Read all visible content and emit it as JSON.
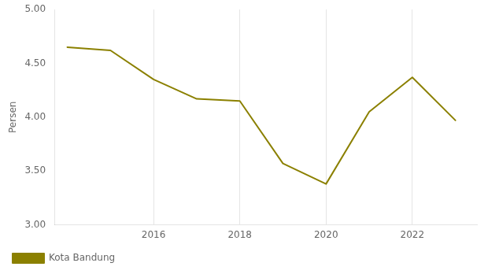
{
  "chart_data": {
    "type": "line",
    "x": [
      2014,
      2015,
      2016,
      2017,
      2018,
      2019,
      2020,
      2021,
      2022,
      2023
    ],
    "series": [
      {
        "name": "Kota Bandung",
        "color": "#8B8000",
        "values": [
          4.65,
          4.62,
          4.35,
          4.17,
          4.15,
          3.57,
          3.38,
          4.05,
          4.37,
          3.97
        ]
      }
    ],
    "y_label": "Persen",
    "xlim": [
      2013.7,
      2023.5
    ],
    "xticks": [
      2016,
      2018,
      2020,
      2022
    ],
    "ylim": [
      3.0,
      5.0
    ],
    "yticks": [
      {
        "value": 3.0,
        "label": "3.00"
      },
      {
        "value": 3.5,
        "label": "3.50"
      },
      {
        "value": 4.0,
        "label": "4.00"
      },
      {
        "value": 4.5,
        "label": "4.50"
      },
      {
        "value": 5.0,
        "label": "5.00"
      }
    ],
    "grid": "x",
    "legend": "lower left"
  }
}
